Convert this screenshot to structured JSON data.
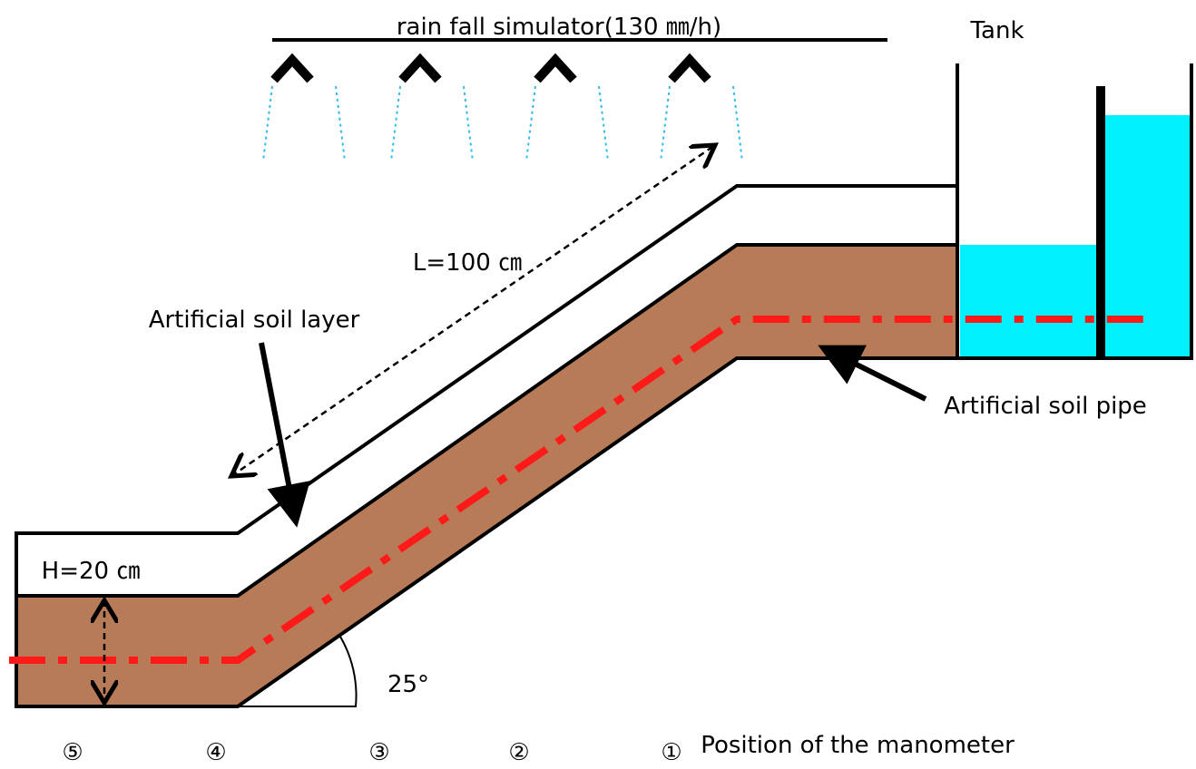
{
  "simulator_label": "rain fall simulator(130 ㎜/h)",
  "tank_label": "Tank",
  "length_label": "L=100 ㎝",
  "layer_label": "Artificial soil layer",
  "pipe_label": "Artificial soil pipe",
  "height_label": "H=20 ㎝",
  "angle_label": "25°",
  "manometer_positions": [
    "⑤",
    "④",
    "③",
    "②",
    "①"
  ],
  "manometer_caption": "Position of the manometer"
}
